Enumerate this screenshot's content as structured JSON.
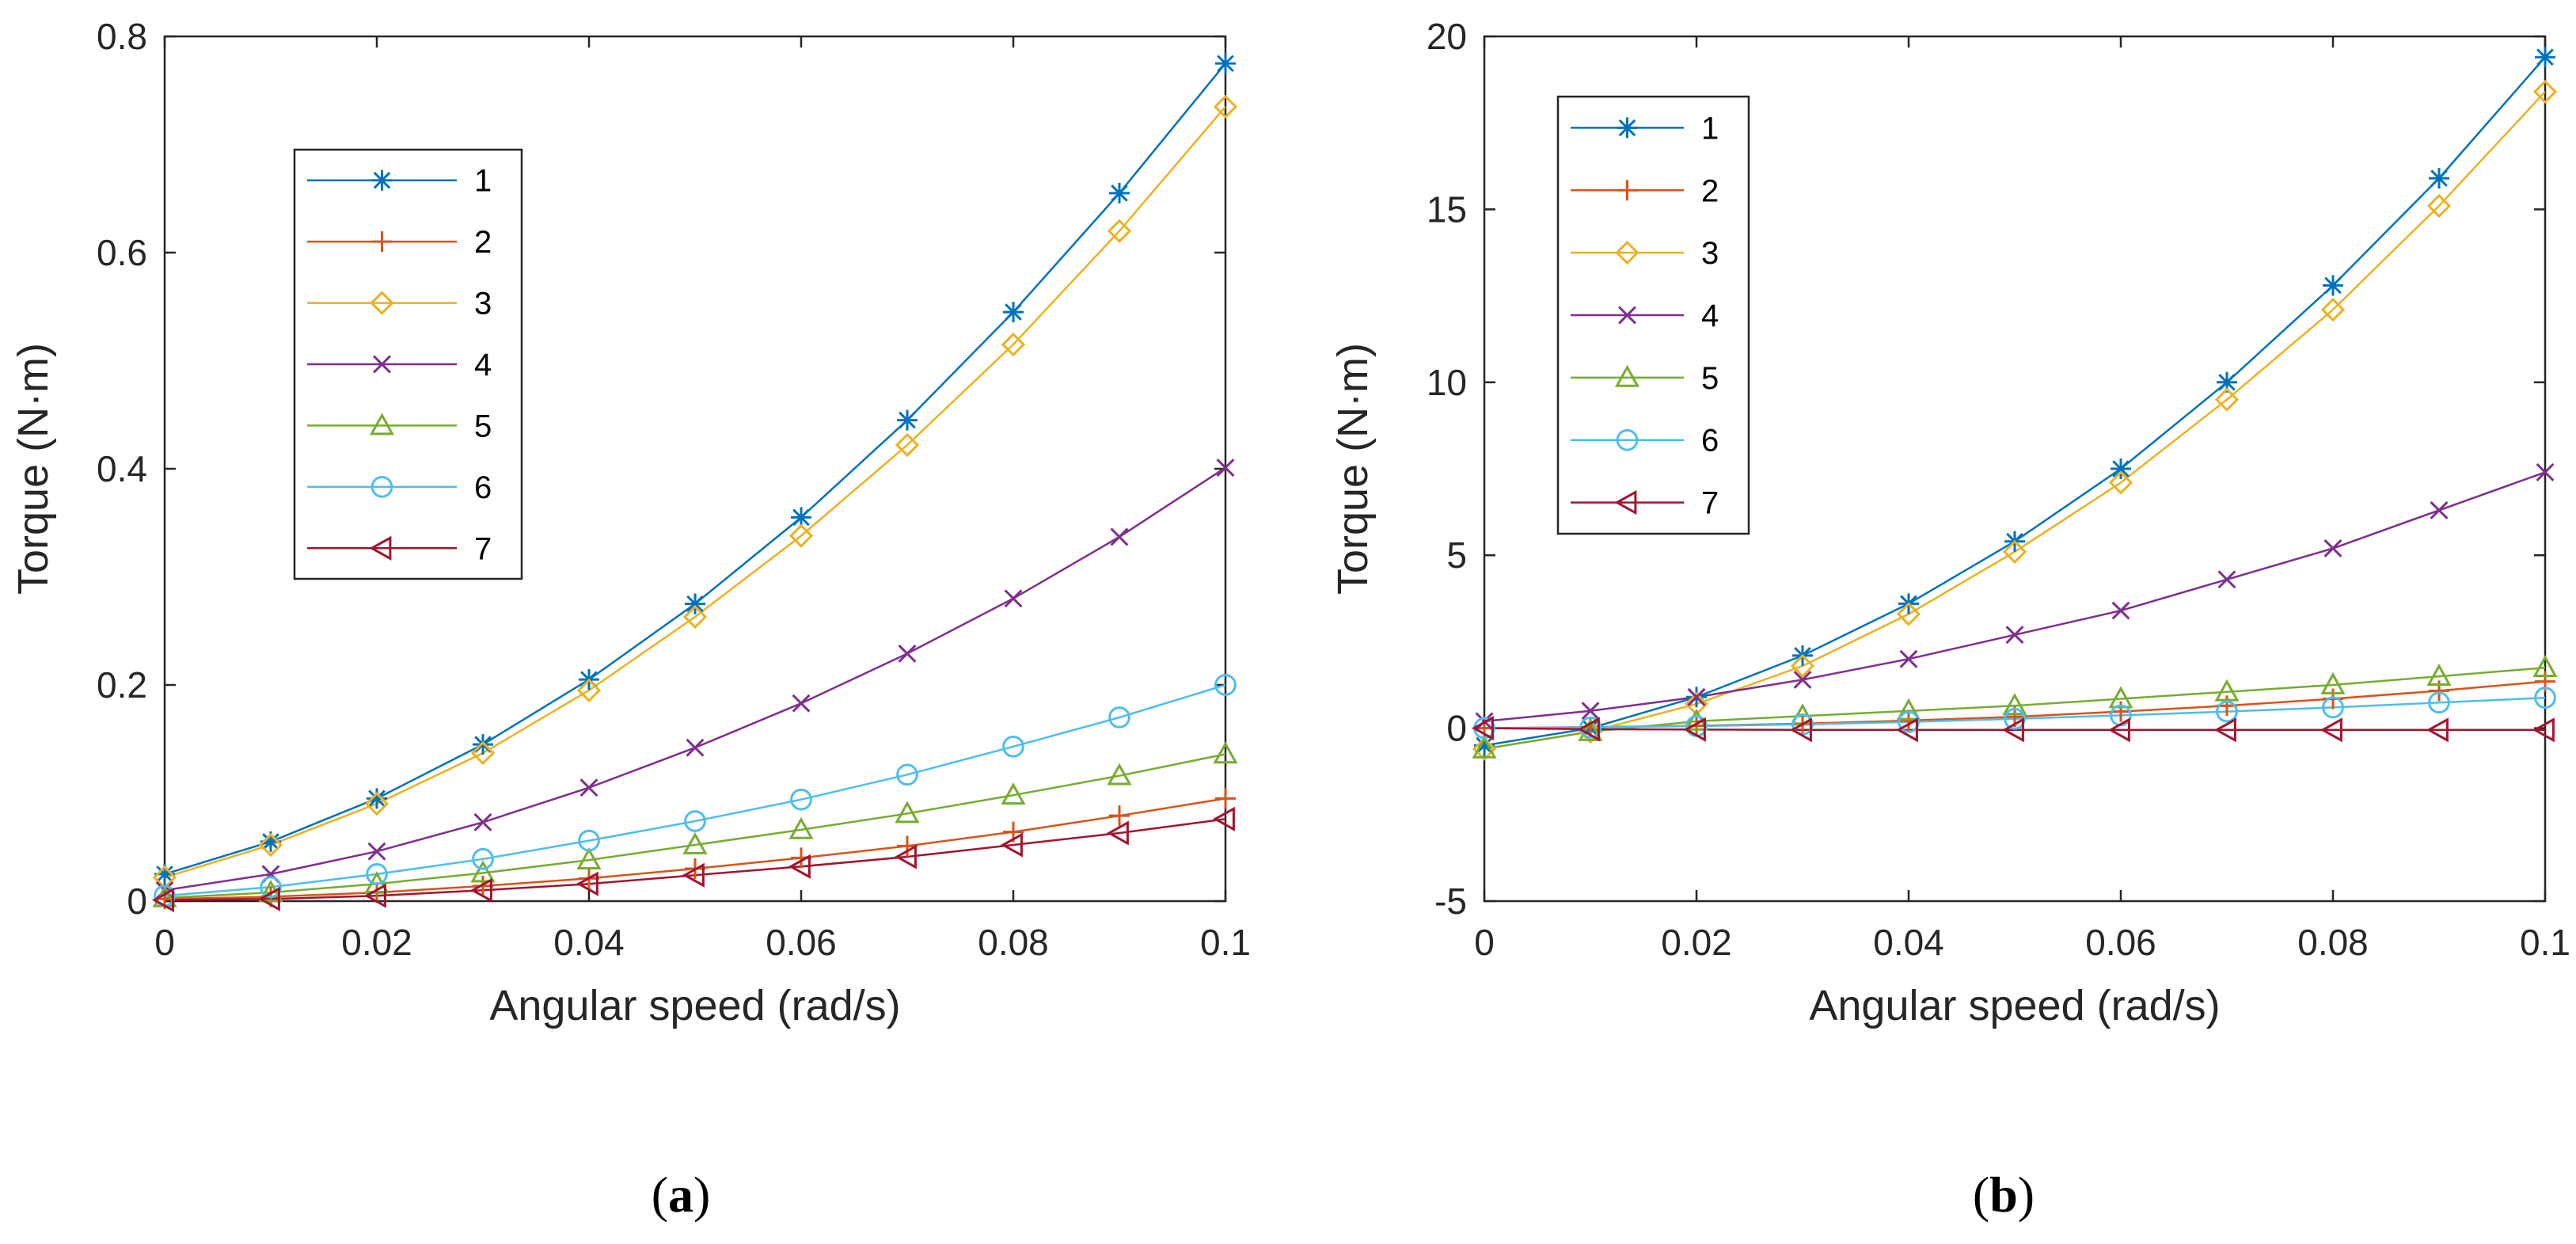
{
  "chart_data": [
    {
      "type": "line",
      "panel_label": "a",
      "caption_open": "(",
      "caption_close": ")",
      "xlabel": "Angular speed (rad/s)",
      "ylabel": "Torque (N·m)",
      "xlim": [
        0,
        0.1
      ],
      "ylim": [
        0,
        0.8
      ],
      "x_ticks": [
        0,
        0.02,
        0.04,
        0.06,
        0.08,
        0.1
      ],
      "x_tick_labels": [
        "0",
        "0.02",
        "0.04",
        "0.06",
        "0.08",
        "0.1"
      ],
      "y_ticks": [
        0,
        0.2,
        0.4,
        0.6,
        0.8
      ],
      "y_tick_labels": [
        "0",
        "0.2",
        "0.4",
        "0.6",
        "0.8"
      ],
      "grid": false,
      "legend_position": "upper-left",
      "x": [
        0,
        0.01,
        0.02,
        0.03,
        0.04,
        0.05,
        0.06,
        0.07,
        0.08,
        0.09,
        0.1
      ],
      "series": [
        {
          "name": "1",
          "color": "#0072BD",
          "marker": "asterisk",
          "values": [
            0.025,
            0.055,
            0.095,
            0.145,
            0.205,
            0.275,
            0.355,
            0.445,
            0.545,
            0.655,
            0.775
          ]
        },
        {
          "name": "2",
          "color": "#D95319",
          "marker": "plus",
          "values": [
            0.002,
            0.004,
            0.008,
            0.014,
            0.021,
            0.03,
            0.04,
            0.051,
            0.064,
            0.079,
            0.095
          ]
        },
        {
          "name": "3",
          "color": "#EDB120",
          "marker": "diamond",
          "values": [
            0.022,
            0.052,
            0.09,
            0.137,
            0.195,
            0.263,
            0.338,
            0.422,
            0.515,
            0.62,
            0.735
          ]
        },
        {
          "name": "4",
          "color": "#7E2F8E",
          "marker": "x",
          "values": [
            0.01,
            0.025,
            0.046,
            0.073,
            0.105,
            0.142,
            0.183,
            0.229,
            0.28,
            0.337,
            0.401
          ]
        },
        {
          "name": "5",
          "color": "#77AC30",
          "marker": "triangle-up",
          "values": [
            0.003,
            0.008,
            0.016,
            0.026,
            0.038,
            0.052,
            0.066,
            0.081,
            0.098,
            0.116,
            0.136
          ]
        },
        {
          "name": "6",
          "color": "#4DBEEE",
          "marker": "circle",
          "values": [
            0.005,
            0.013,
            0.025,
            0.039,
            0.056,
            0.074,
            0.094,
            0.117,
            0.143,
            0.17,
            0.2
          ]
        },
        {
          "name": "7",
          "color": "#A2142F",
          "marker": "triangle-left",
          "values": [
            0.001,
            0.002,
            0.005,
            0.01,
            0.016,
            0.024,
            0.032,
            0.041,
            0.052,
            0.063,
            0.076
          ]
        }
      ]
    },
    {
      "type": "line",
      "panel_label": "b",
      "caption_open": "(",
      "caption_close": ")",
      "xlabel": "Angular speed (rad/s)",
      "ylabel": "Torque (N·m)",
      "xlim": [
        0,
        0.1
      ],
      "ylim": [
        -5,
        20
      ],
      "x_ticks": [
        0,
        0.02,
        0.04,
        0.06,
        0.08,
        0.1
      ],
      "x_tick_labels": [
        "0",
        "0.02",
        "0.04",
        "0.06",
        "0.08",
        "0.1"
      ],
      "y_ticks": [
        -5,
        0,
        5,
        10,
        15,
        20
      ],
      "y_tick_labels": [
        "-5",
        "0",
        "5",
        "10",
        "15",
        "20"
      ],
      "grid": false,
      "legend_position": "upper-left",
      "x": [
        0,
        0.01,
        0.02,
        0.03,
        0.04,
        0.05,
        0.06,
        0.07,
        0.08,
        0.09,
        0.1
      ],
      "series": [
        {
          "name": "1",
          "color": "#0072BD",
          "marker": "asterisk",
          "values": [
            -0.5,
            0.0,
            0.9,
            2.1,
            3.6,
            5.4,
            7.5,
            10.0,
            12.8,
            15.9,
            19.4
          ]
        },
        {
          "name": "2",
          "color": "#D95319",
          "marker": "plus",
          "values": [
            0.0,
            0.03,
            0.07,
            0.13,
            0.22,
            0.33,
            0.48,
            0.65,
            0.85,
            1.08,
            1.35
          ]
        },
        {
          "name": "3",
          "color": "#EDB120",
          "marker": "diamond",
          "values": [
            -0.6,
            -0.1,
            0.7,
            1.8,
            3.3,
            5.1,
            7.1,
            9.5,
            12.1,
            15.1,
            18.4
          ]
        },
        {
          "name": "4",
          "color": "#7E2F8E",
          "marker": "x",
          "values": [
            0.2,
            0.5,
            0.9,
            1.4,
            2.0,
            2.7,
            3.4,
            4.3,
            5.2,
            6.3,
            7.4
          ]
        },
        {
          "name": "5",
          "color": "#77AC30",
          "marker": "triangle-up",
          "values": [
            -0.6,
            -0.1,
            0.2,
            0.35,
            0.5,
            0.65,
            0.85,
            1.05,
            1.25,
            1.5,
            1.75
          ]
        },
        {
          "name": "6",
          "color": "#4DBEEE",
          "marker": "circle",
          "values": [
            0.0,
            0.02,
            0.06,
            0.11,
            0.18,
            0.27,
            0.37,
            0.48,
            0.6,
            0.74,
            0.88
          ]
        },
        {
          "name": "7",
          "color": "#A2142F",
          "marker": "triangle-left",
          "values": [
            0.0,
            -0.03,
            -0.04,
            -0.05,
            -0.05,
            -0.05,
            -0.05,
            -0.05,
            -0.05,
            -0.05,
            -0.05
          ]
        }
      ]
    }
  ]
}
